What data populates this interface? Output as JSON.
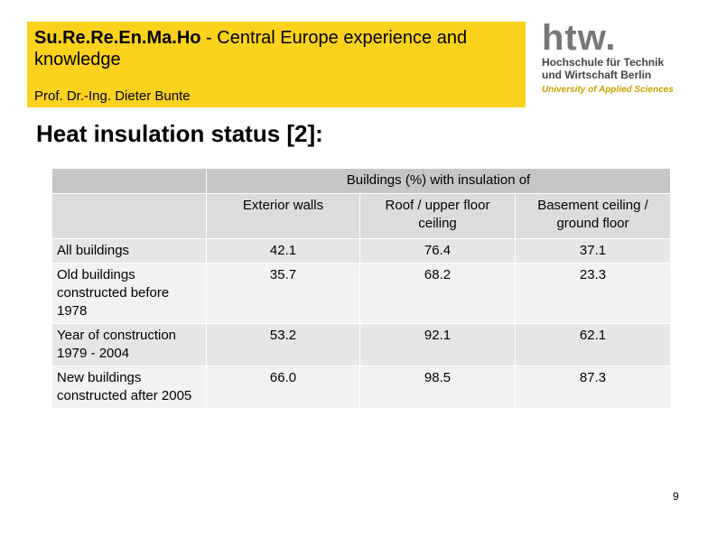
{
  "header": {
    "title_bold": "Su.Re.Re.En.Ma.Ho",
    "title_rest": " - Central Europe experience and knowledge",
    "author": "Prof. Dr.-Ing. Dieter Bunte"
  },
  "logo": {
    "mark": "htw.",
    "line1": "Hochschule für Technik",
    "line2": "und Wirtschaft Berlin",
    "line3": "University of Applied Sciences"
  },
  "heading": "Heat insulation status [2]:",
  "table": {
    "group_header": "Buildings (%) with insulation of",
    "columns": [
      "Exterior walls",
      "Roof / upper floor ceiling",
      "Basement ceiling / ground floor"
    ],
    "rows": [
      [
        "All buildings",
        "42.1",
        "76.4",
        "37.1"
      ],
      [
        "Old buildings constructed before 1978",
        "35.7",
        "68.2",
        "23.3"
      ],
      [
        "Year of construction 1979 - 2004",
        "53.2",
        "92.1",
        "62.1"
      ],
      [
        "New buildings constructed after 2005",
        "66.0",
        "98.5",
        "87.3"
      ]
    ]
  },
  "page_number": "9"
}
